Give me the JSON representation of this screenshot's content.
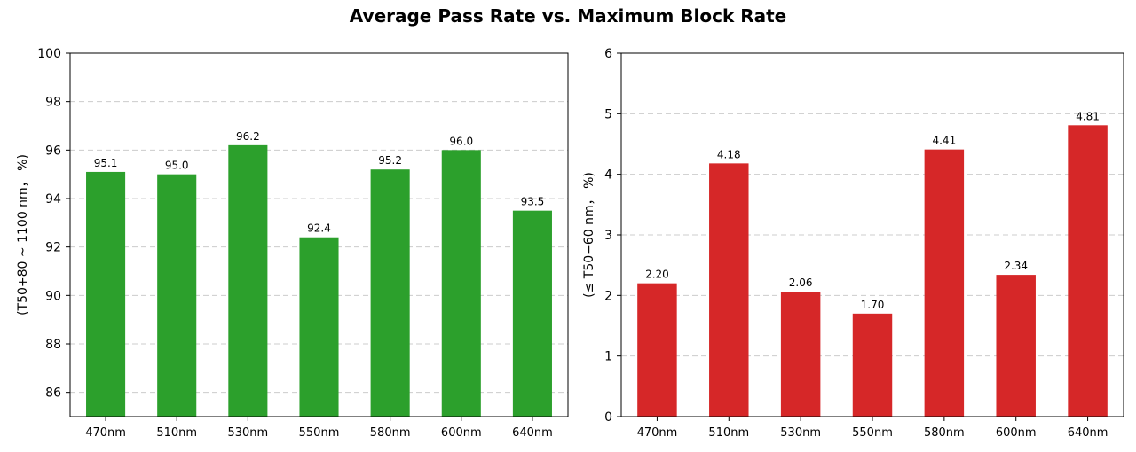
{
  "figure": {
    "title": "Average Pass Rate vs. Maximum Block Rate"
  },
  "chart_data": [
    {
      "type": "bar",
      "title": "",
      "xlabel": "",
      "ylabel": "(T50+80 ~ 1100 nm， %)",
      "categories": [
        "470nm",
        "510nm",
        "530nm",
        "550nm",
        "580nm",
        "600nm",
        "640nm"
      ],
      "values": [
        95.1,
        95.0,
        96.2,
        92.4,
        95.2,
        96.0,
        93.5
      ],
      "value_labels": [
        "95.1",
        "95.0",
        "96.2",
        "92.4",
        "95.2",
        "96.0",
        "93.5"
      ],
      "ylim": [
        85,
        100
      ],
      "yticks": [
        86,
        88,
        90,
        92,
        94,
        96,
        98,
        100
      ],
      "grid": "y-dashed",
      "bar_color": "#2ca02c"
    },
    {
      "type": "bar",
      "title": "",
      "xlabel": "",
      "ylabel": "(≤ T50−60 nm， %)",
      "categories": [
        "470nm",
        "510nm",
        "530nm",
        "550nm",
        "580nm",
        "600nm",
        "640nm"
      ],
      "values": [
        2.2,
        4.18,
        2.06,
        1.7,
        4.41,
        2.34,
        4.81
      ],
      "value_labels": [
        "2.20",
        "4.18",
        "2.06",
        "1.70",
        "4.41",
        "2.34",
        "4.81"
      ],
      "ylim": [
        0,
        6
      ],
      "yticks": [
        0,
        1,
        2,
        3,
        4,
        5,
        6
      ],
      "grid": "y-dashed",
      "bar_color": "#d62728"
    }
  ]
}
